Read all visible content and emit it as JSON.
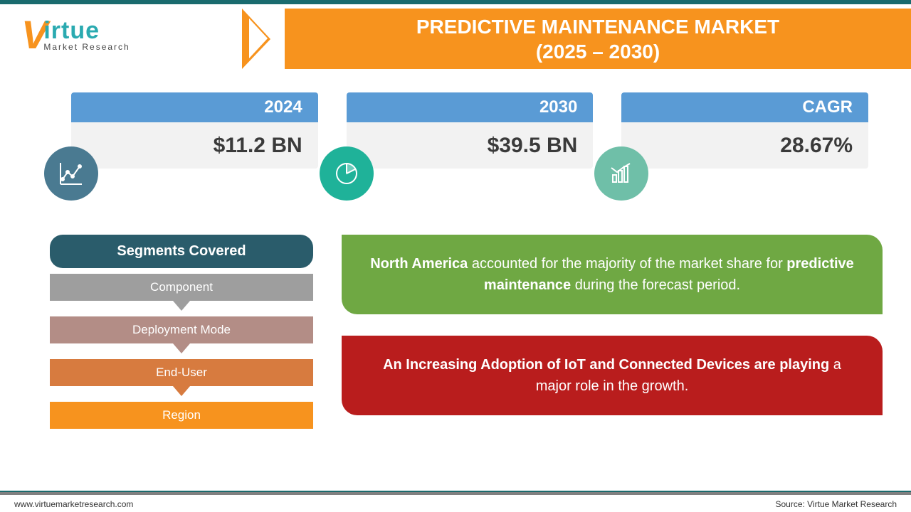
{
  "colors": {
    "orange": "#f7931e",
    "teal": "#2aaab0",
    "dark_teal": "#1a6b6e",
    "blue_tab": "#5a9bd5",
    "light_blue_notch": "#c9dced",
    "body_bg": "#f2f2f2",
    "seg_title_bg": "#2a5c6b",
    "seg_gray": "#9e9e9e",
    "seg_rose": "#b38d86",
    "seg_orange": "#d77b3f",
    "seg_orange2": "#f7931e",
    "callout_green": "#6fa843",
    "callout_red": "#b91d1d",
    "icon1_bg": "#4a7a91",
    "icon2_bg": "#1fb299",
    "icon3_bg": "#6fbfa8",
    "footer_gray": "#808080"
  },
  "logo": {
    "v": "V",
    "main": "irtue",
    "sub": "Market Research"
  },
  "title": {
    "line1": "PREDICTIVE MAINTENANCE MARKET",
    "line2": "(2025 – 2030)"
  },
  "stats": [
    {
      "label": "2024",
      "value": "$11.2 BN",
      "icon": "line-chart",
      "icon_bg": "#4a7a91"
    },
    {
      "label": "2030",
      "value": "$39.5 BN",
      "icon": "pie-chart",
      "icon_bg": "#1fb299"
    },
    {
      "label": "CAGR",
      "value": "28.67%",
      "icon": "bar-chart",
      "icon_bg": "#6fbfa8"
    }
  ],
  "segments": {
    "title": "Segments Covered",
    "items": [
      {
        "label": "Component",
        "bg": "#9e9e9e",
        "arrow": "#9e9e9e"
      },
      {
        "label": "Deployment Mode",
        "bg": "#b38d86",
        "arrow": "#b38d86"
      },
      {
        "label": "End-User",
        "bg": "#d77b3f",
        "arrow": "#d77b3f"
      },
      {
        "label": "Region",
        "bg": "#f7931e",
        "arrow": null
      }
    ]
  },
  "callouts": {
    "green": {
      "bg": "#6fa843",
      "html_parts": [
        "North America",
        " accounted for the majority of the market share for ",
        "predictive maintenance",
        " during the forecast period."
      ]
    },
    "red": {
      "bg": "#b91d1d",
      "html_parts": [
        "An Increasing Adoption of IoT and Connected Devices are playing",
        " a major role in the growth."
      ]
    }
  },
  "footer": {
    "url": "www.virtuemarketresearch.com",
    "source": "Source: Virtue Market Research"
  }
}
